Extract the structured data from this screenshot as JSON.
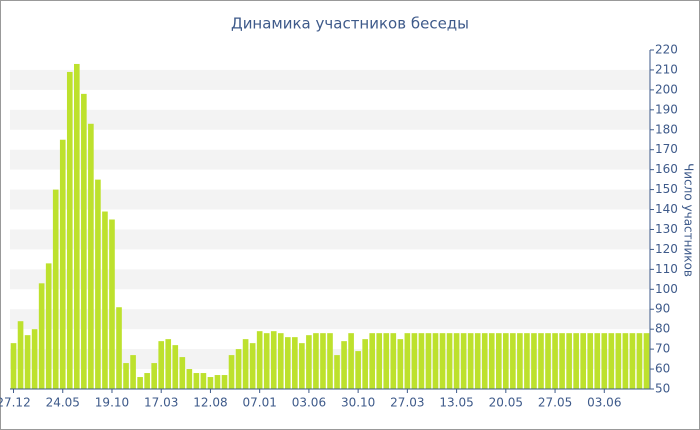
{
  "chart_data": {
    "type": "bar",
    "title": "Динамика участников беседы",
    "y_label": "Число участников",
    "categories": [
      "27.12",
      null,
      null,
      null,
      null,
      null,
      null,
      "24.05",
      null,
      null,
      null,
      null,
      null,
      null,
      "19.10",
      null,
      null,
      null,
      null,
      null,
      null,
      "17.03",
      null,
      null,
      null,
      null,
      null,
      null,
      "12.08",
      null,
      null,
      null,
      null,
      null,
      null,
      "07.01",
      null,
      null,
      null,
      null,
      null,
      null,
      "03.06",
      null,
      null,
      null,
      null,
      null,
      null,
      "30.10",
      null,
      null,
      null,
      null,
      null,
      null,
      "27.03",
      null,
      null,
      null,
      null,
      null,
      null,
      "13.05",
      null,
      null,
      null,
      null,
      null,
      null,
      "20.05",
      null,
      null,
      null,
      null,
      null,
      null,
      "27.05",
      null,
      null,
      null,
      null,
      null,
      null,
      "03.06",
      null,
      null,
      null,
      null,
      null,
      null
    ],
    "values": [
      73,
      84,
      77,
      80,
      103,
      113,
      150,
      175,
      209,
      213,
      198,
      183,
      155,
      139,
      135,
      91,
      63,
      67,
      56,
      58,
      63,
      74,
      75,
      72,
      66,
      60,
      58,
      58,
      56,
      57,
      57,
      67,
      70,
      75,
      73,
      79,
      78,
      79,
      78,
      76,
      76,
      73,
      77,
      78,
      78,
      78,
      67,
      74,
      78,
      69,
      75,
      78,
      78,
      78,
      78,
      75,
      78,
      78,
      78,
      78,
      78,
      78,
      78,
      78,
      78,
      78,
      78,
      78,
      78,
      78,
      78,
      78,
      78,
      78,
      78,
      78,
      78,
      78,
      78,
      78,
      78,
      78,
      78,
      78,
      78,
      78,
      78,
      78,
      78,
      78,
      78
    ],
    "color": "#bde12d",
    "ylim": [
      50,
      220
    ],
    "yticks": [
      50,
      60,
      70,
      80,
      90,
      100,
      110,
      120,
      130,
      140,
      150,
      160,
      170,
      180,
      190,
      200,
      210,
      220
    ],
    "grid": true
  }
}
